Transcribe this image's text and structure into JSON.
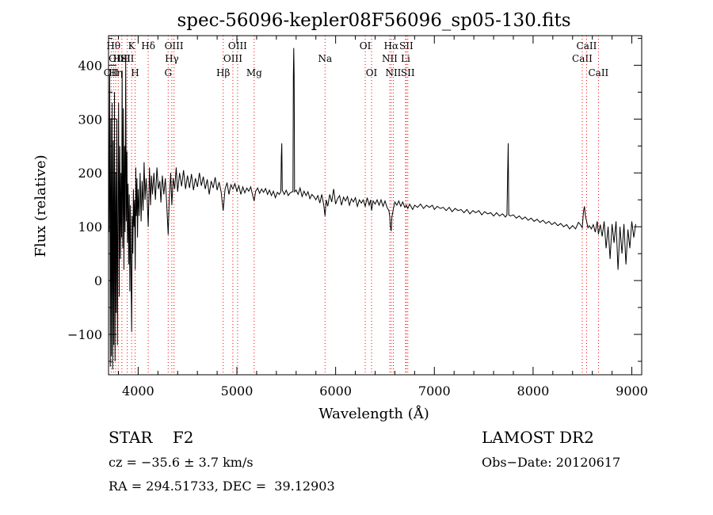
{
  "chart_data": {
    "type": "line",
    "title": "spec-56096-kepler08F56096_sp05-130.fits",
    "xlabel": "Wavelength (Å)",
    "ylabel": "Flux (relative)",
    "xlim": [
      3700,
      9100
    ],
    "ylim": [
      -175,
      455
    ],
    "xticks": [
      4000,
      5000,
      6000,
      7000,
      8000,
      9000
    ],
    "yticks": [
      -100,
      0,
      100,
      200,
      300,
      400
    ],
    "ytick_labels": [
      "−100",
      "0",
      "100",
      "200",
      "300",
      "400"
    ],
    "line_color": "#000000",
    "marker_color": "#ff0000",
    "grid": false,
    "lines": [
      {
        "wl": 3727,
        "label": "OII",
        "row": 3
      },
      {
        "wl": 3750,
        "label": "Hθ",
        "row": 1
      },
      {
        "wl": 3772,
        "label": "Hη",
        "row": 3
      },
      {
        "wl": 3798,
        "label": "OIII",
        "row": 2
      },
      {
        "wl": 3835,
        "label": "HeI",
        "row": 2
      },
      {
        "wl": 3889,
        "label": "SII",
        "row": 2
      },
      {
        "wl": 3934,
        "label": "K",
        "row": 1
      },
      {
        "wl": 3969,
        "label": "H",
        "row": 3
      },
      {
        "wl": 4102,
        "label": "Hδ",
        "row": 1
      },
      {
        "wl": 4304,
        "label": "G",
        "row": 3
      },
      {
        "wl": 4341,
        "label": "Hγ",
        "row": 2
      },
      {
        "wl": 4363,
        "label": "OIII",
        "row": 1
      },
      {
        "wl": 4861,
        "label": "Hβ",
        "row": 3
      },
      {
        "wl": 4959,
        "label": "OIII",
        "row": 2
      },
      {
        "wl": 5007,
        "label": "OIII",
        "row": 1
      },
      {
        "wl": 5175,
        "label": "Mg",
        "row": 3
      },
      {
        "wl": 5893,
        "label": "Na",
        "row": 2
      },
      {
        "wl": 6300,
        "label": "OI",
        "row": 1
      },
      {
        "wl": 6364,
        "label": "OI",
        "row": 3
      },
      {
        "wl": 6548,
        "label": "NII",
        "row": 2
      },
      {
        "wl": 6563,
        "label": "Hα",
        "row": 1
      },
      {
        "wl": 6584,
        "label": "NII",
        "row": 3
      },
      {
        "wl": 6708,
        "label": "Li",
        "row": 2
      },
      {
        "wl": 6716,
        "label": "SII",
        "row": 1
      },
      {
        "wl": 6731,
        "label": "SII",
        "row": 3
      },
      {
        "wl": 8498,
        "label": "CaII",
        "row": 2
      },
      {
        "wl": 8542,
        "label": "CaII",
        "row": 1
      },
      {
        "wl": 8662,
        "label": "CaII",
        "row": 3
      }
    ],
    "spectrum": [
      [
        3705,
        90
      ],
      [
        3712,
        380
      ],
      [
        3718,
        -160
      ],
      [
        3724,
        300
      ],
      [
        3730,
        -140
      ],
      [
        3736,
        330
      ],
      [
        3742,
        -165
      ],
      [
        3748,
        260
      ],
      [
        3754,
        -120
      ],
      [
        3760,
        350
      ],
      [
        3766,
        -150
      ],
      [
        3772,
        200
      ],
      [
        3778,
        -60
      ],
      [
        3784,
        300
      ],
      [
        3790,
        -120
      ],
      [
        3796,
        120
      ],
      [
        3802,
        330
      ],
      [
        3808,
        -30
      ],
      [
        3814,
        250
      ],
      [
        3820,
        40
      ],
      [
        3826,
        200
      ],
      [
        3832,
        80
      ],
      [
        3838,
        390
      ],
      [
        3844,
        60
      ],
      [
        3850,
        320
      ],
      [
        3856,
        20
      ],
      [
        3862,
        250
      ],
      [
        3868,
        90
      ],
      [
        3874,
        410
      ],
      [
        3880,
        110
      ],
      [
        3886,
        240
      ],
      [
        3892,
        70
      ],
      [
        3898,
        180
      ],
      [
        3904,
        30
      ],
      [
        3910,
        160
      ],
      [
        3916,
        -20
      ],
      [
        3922,
        140
      ],
      [
        3928,
        10
      ],
      [
        3934,
        -95
      ],
      [
        3940,
        120
      ],
      [
        3946,
        50
      ],
      [
        3952,
        170
      ],
      [
        3958,
        100
      ],
      [
        3964,
        150
      ],
      [
        3970,
        20
      ],
      [
        3976,
        210
      ],
      [
        3982,
        120
      ],
      [
        3988,
        190
      ],
      [
        3994,
        80
      ],
      [
        4000,
        170
      ],
      [
        4010,
        120
      ],
      [
        4020,
        200
      ],
      [
        4030,
        110
      ],
      [
        4040,
        185
      ],
      [
        4050,
        130
      ],
      [
        4060,
        220
      ],
      [
        4070,
        150
      ],
      [
        4080,
        190
      ],
      [
        4090,
        160
      ],
      [
        4102,
        100
      ],
      [
        4115,
        210
      ],
      [
        4125,
        140
      ],
      [
        4135,
        195
      ],
      [
        4145,
        160
      ],
      [
        4160,
        200
      ],
      [
        4175,
        150
      ],
      [
        4190,
        210
      ],
      [
        4205,
        170
      ],
      [
        4220,
        185
      ],
      [
        4230,
        145
      ],
      [
        4245,
        195
      ],
      [
        4260,
        160
      ],
      [
        4275,
        190
      ],
      [
        4290,
        140
      ],
      [
        4304,
        85
      ],
      [
        4315,
        150
      ],
      [
        4330,
        200
      ],
      [
        4341,
        140
      ],
      [
        4355,
        190
      ],
      [
        4370,
        170
      ],
      [
        4385,
        210
      ],
      [
        4400,
        165
      ],
      [
        4420,
        200
      ],
      [
        4440,
        175
      ],
      [
        4460,
        205
      ],
      [
        4480,
        170
      ],
      [
        4500,
        195
      ],
      [
        4520,
        172
      ],
      [
        4540,
        198
      ],
      [
        4560,
        168
      ],
      [
        4580,
        190
      ],
      [
        4600,
        174
      ],
      [
        4620,
        200
      ],
      [
        4640,
        176
      ],
      [
        4660,
        193
      ],
      [
        4680,
        170
      ],
      [
        4700,
        188
      ],
      [
        4720,
        160
      ],
      [
        4740,
        185
      ],
      [
        4760,
        172
      ],
      [
        4780,
        192
      ],
      [
        4800,
        168
      ],
      [
        4820,
        183
      ],
      [
        4840,
        165
      ],
      [
        4861,
        130
      ],
      [
        4880,
        170
      ],
      [
        4900,
        182
      ],
      [
        4920,
        160
      ],
      [
        4940,
        178
      ],
      [
        4960,
        170
      ],
      [
        4980,
        180
      ],
      [
        5000,
        166
      ],
      [
        5020,
        176
      ],
      [
        5040,
        160
      ],
      [
        5060,
        174
      ],
      [
        5080,
        163
      ],
      [
        5100,
        172
      ],
      [
        5120,
        166
      ],
      [
        5140,
        174
      ],
      [
        5160,
        158
      ],
      [
        5175,
        148
      ],
      [
        5190,
        166
      ],
      [
        5210,
        172
      ],
      [
        5230,
        162
      ],
      [
        5250,
        170
      ],
      [
        5270,
        164
      ],
      [
        5290,
        171
      ],
      [
        5310,
        160
      ],
      [
        5330,
        168
      ],
      [
        5350,
        158
      ],
      [
        5370,
        166
      ],
      [
        5390,
        154
      ],
      [
        5410,
        164
      ],
      [
        5430,
        160
      ],
      [
        5445,
        165
      ],
      [
        5450,
        230
      ],
      [
        5455,
        255
      ],
      [
        5460,
        168
      ],
      [
        5480,
        160
      ],
      [
        5500,
        168
      ],
      [
        5520,
        158
      ],
      [
        5540,
        163
      ],
      [
        5560,
        165
      ],
      [
        5568,
        165
      ],
      [
        5572,
        380
      ],
      [
        5576,
        432
      ],
      [
        5580,
        380
      ],
      [
        5584,
        165
      ],
      [
        5600,
        168
      ],
      [
        5620,
        160
      ],
      [
        5640,
        172
      ],
      [
        5660,
        156
      ],
      [
        5680,
        166
      ],
      [
        5700,
        158
      ],
      [
        5720,
        165
      ],
      [
        5740,
        152
      ],
      [
        5760,
        160
      ],
      [
        5780,
        156
      ],
      [
        5800,
        150
      ],
      [
        5820,
        158
      ],
      [
        5840,
        144
      ],
      [
        5860,
        160
      ],
      [
        5880,
        140
      ],
      [
        5893,
        120
      ],
      [
        5905,
        150
      ],
      [
        5920,
        138
      ],
      [
        5940,
        160
      ],
      [
        5960,
        146
      ],
      [
        5980,
        170
      ],
      [
        6000,
        142
      ],
      [
        6020,
        152
      ],
      [
        6040,
        158
      ],
      [
        6060,
        140
      ],
      [
        6080,
        155
      ],
      [
        6100,
        148
      ],
      [
        6120,
        156
      ],
      [
        6140,
        140
      ],
      [
        6160,
        152
      ],
      [
        6180,
        146
      ],
      [
        6200,
        154
      ],
      [
        6220,
        138
      ],
      [
        6240,
        150
      ],
      [
        6260,
        144
      ],
      [
        6280,
        150
      ],
      [
        6300,
        138
      ],
      [
        6320,
        154
      ],
      [
        6340,
        140
      ],
      [
        6355,
        150
      ],
      [
        6364,
        130
      ],
      [
        6380,
        148
      ],
      [
        6400,
        142
      ],
      [
        6420,
        150
      ],
      [
        6440,
        140
      ],
      [
        6460,
        150
      ],
      [
        6480,
        138
      ],
      [
        6500,
        148
      ],
      [
        6520,
        136
      ],
      [
        6540,
        130
      ],
      [
        6548,
        120
      ],
      [
        6555,
        100
      ],
      [
        6563,
        92
      ],
      [
        6570,
        118
      ],
      [
        6584,
        132
      ],
      [
        6600,
        146
      ],
      [
        6620,
        140
      ],
      [
        6640,
        148
      ],
      [
        6660,
        138
      ],
      [
        6680,
        146
      ],
      [
        6700,
        136
      ],
      [
        6716,
        140
      ],
      [
        6731,
        134
      ],
      [
        6750,
        142
      ],
      [
        6780,
        132
      ],
      [
        6800,
        140
      ],
      [
        6830,
        136
      ],
      [
        6860,
        142
      ],
      [
        6890,
        134
      ],
      [
        6920,
        140
      ],
      [
        6950,
        136
      ],
      [
        6980,
        140
      ],
      [
        7000,
        132
      ],
      [
        7030,
        138
      ],
      [
        7060,
        134
      ],
      [
        7090,
        136
      ],
      [
        7120,
        130
      ],
      [
        7150,
        136
      ],
      [
        7180,
        128
      ],
      [
        7210,
        134
      ],
      [
        7240,
        130
      ],
      [
        7270,
        132
      ],
      [
        7300,
        126
      ],
      [
        7330,
        132
      ],
      [
        7360,
        124
      ],
      [
        7390,
        130
      ],
      [
        7420,
        126
      ],
      [
        7450,
        130
      ],
      [
        7480,
        122
      ],
      [
        7510,
        128
      ],
      [
        7540,
        124
      ],
      [
        7570,
        126
      ],
      [
        7600,
        120
      ],
      [
        7630,
        126
      ],
      [
        7660,
        120
      ],
      [
        7690,
        124
      ],
      [
        7720,
        118
      ],
      [
        7735,
        122
      ],
      [
        7742,
        200
      ],
      [
        7748,
        255
      ],
      [
        7754,
        122
      ],
      [
        7770,
        120
      ],
      [
        7800,
        122
      ],
      [
        7830,
        116
      ],
      [
        7860,
        120
      ],
      [
        7890,
        114
      ],
      [
        7920,
        118
      ],
      [
        7950,
        112
      ],
      [
        7980,
        116
      ],
      [
        8010,
        110
      ],
      [
        8040,
        114
      ],
      [
        8070,
        108
      ],
      [
        8100,
        112
      ],
      [
        8130,
        106
      ],
      [
        8160,
        110
      ],
      [
        8190,
        104
      ],
      [
        8220,
        108
      ],
      [
        8250,
        102
      ],
      [
        8280,
        106
      ],
      [
        8310,
        100
      ],
      [
        8340,
        104
      ],
      [
        8370,
        96
      ],
      [
        8400,
        102
      ],
      [
        8430,
        96
      ],
      [
        8460,
        108
      ],
      [
        8480,
        104
      ],
      [
        8498,
        98
      ],
      [
        8510,
        128
      ],
      [
        8520,
        138
      ],
      [
        8530,
        120
      ],
      [
        8542,
        110
      ],
      [
        8555,
        98
      ],
      [
        8570,
        102
      ],
      [
        8590,
        96
      ],
      [
        8610,
        104
      ],
      [
        8630,
        90
      ],
      [
        8650,
        110
      ],
      [
        8662,
        86
      ],
      [
        8680,
        104
      ],
      [
        8700,
        82
      ],
      [
        8720,
        110
      ],
      [
        8740,
        60
      ],
      [
        8760,
        100
      ],
      [
        8780,
        40
      ],
      [
        8800,
        105
      ],
      [
        8820,
        70
      ],
      [
        8840,
        110
      ],
      [
        8860,
        20
      ],
      [
        8880,
        100
      ],
      [
        8900,
        50
      ],
      [
        8920,
        105
      ],
      [
        8940,
        30
      ],
      [
        8960,
        95
      ],
      [
        8980,
        60
      ],
      [
        9000,
        110
      ],
      [
        9020,
        80
      ],
      [
        9040,
        105
      ]
    ]
  },
  "info": {
    "object": "STAR    F2",
    "survey": "LAMOST DR2",
    "cz": "cz = −35.6 ± 3.7 km/s",
    "obs_date": "Obs−Date: 20120617",
    "coords": "RA = 294.51733, DEC =  39.12903"
  }
}
